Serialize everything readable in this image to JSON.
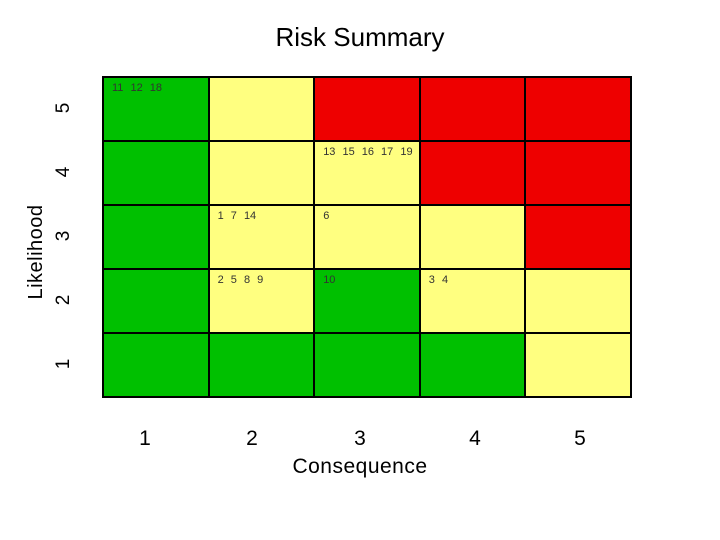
{
  "title": "Risk Summary",
  "y_axis": {
    "title": "Likelihood",
    "labels": [
      "5",
      "4",
      "3",
      "2",
      "1"
    ]
  },
  "x_axis": {
    "title": "Consequence",
    "labels": [
      "1",
      "2",
      "3",
      "4",
      "5"
    ]
  },
  "colors": {
    "green": "#00c000",
    "yellow": "#ffff80",
    "red": "#ee0000"
  },
  "matrix": [
    [
      {
        "color": "green",
        "items": "11 12 18"
      },
      {
        "color": "yellow",
        "items": ""
      },
      {
        "color": "red",
        "items": ""
      },
      {
        "color": "red",
        "items": ""
      },
      {
        "color": "red",
        "items": ""
      }
    ],
    [
      {
        "color": "green",
        "items": ""
      },
      {
        "color": "yellow",
        "items": ""
      },
      {
        "color": "yellow",
        "items": "13 15 16 17 19"
      },
      {
        "color": "red",
        "items": ""
      },
      {
        "color": "red",
        "items": ""
      }
    ],
    [
      {
        "color": "green",
        "items": ""
      },
      {
        "color": "yellow",
        "items": "1 7 14"
      },
      {
        "color": "yellow",
        "items": "6"
      },
      {
        "color": "yellow",
        "items": ""
      },
      {
        "color": "red",
        "items": ""
      }
    ],
    [
      {
        "color": "green",
        "items": ""
      },
      {
        "color": "yellow",
        "items": "2 5 8 9"
      },
      {
        "color": "green",
        "items": "10"
      },
      {
        "color": "yellow",
        "items": "3 4"
      },
      {
        "color": "yellow",
        "items": ""
      }
    ],
    [
      {
        "color": "green",
        "items": ""
      },
      {
        "color": "green",
        "items": ""
      },
      {
        "color": "green",
        "items": ""
      },
      {
        "color": "green",
        "items": ""
      },
      {
        "color": "yellow",
        "items": ""
      }
    ]
  ]
}
